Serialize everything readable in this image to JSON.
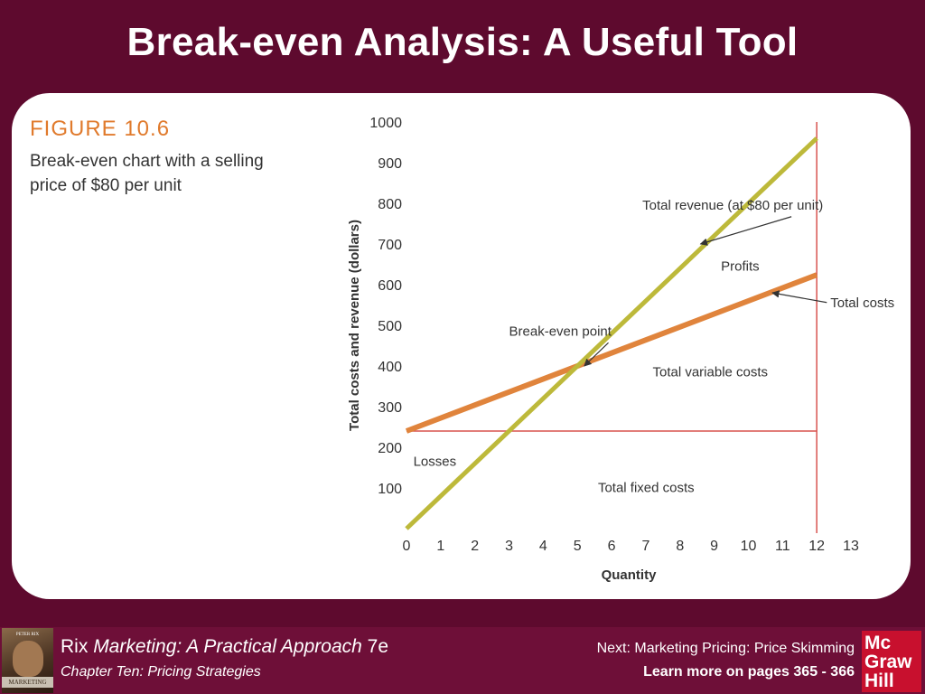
{
  "slide": {
    "title": "Break-even Analysis: A Useful Tool"
  },
  "figure": {
    "label": "FIGURE 10.6",
    "caption": "Break-even chart with a selling price of $80 per unit"
  },
  "chart_data": {
    "type": "line",
    "xlabel": "Quantity",
    "ylabel": "Total costs and revenue (dollars)",
    "xlim": [
      0,
      13
    ],
    "ylim": [
      0,
      1000
    ],
    "x_ticks": [
      0,
      1,
      2,
      3,
      4,
      5,
      6,
      7,
      8,
      9,
      10,
      11,
      12,
      13
    ],
    "y_ticks": [
      100,
      200,
      300,
      400,
      500,
      600,
      700,
      800,
      900,
      1000
    ],
    "grid": false,
    "series": [
      {
        "name": "Total revenue (at $80 per unit)",
        "color": "#bdb93a",
        "x": [
          0,
          12
        ],
        "y": [
          0,
          960
        ]
      },
      {
        "name": "Total costs",
        "color": "#e0843c",
        "x": [
          0,
          12
        ],
        "y": [
          240,
          624
        ]
      },
      {
        "name": "Total fixed costs",
        "color": "#d9534f",
        "x": [
          0,
          12
        ],
        "y": [
          240,
          240
        ]
      }
    ],
    "vertical_marker": {
      "x": 12,
      "color": "#d9534f"
    },
    "annotations": [
      {
        "text": "Total revenue (at $80 per unit)",
        "x": 6.9,
        "y": 785,
        "arrow_to": [
          8.6,
          700
        ]
      },
      {
        "text": "Profits",
        "x": 9.2,
        "y": 635
      },
      {
        "text": "Total costs",
        "x": 12.4,
        "y": 545,
        "arrow_to": [
          10.7,
          580
        ]
      },
      {
        "text": "Break-even point",
        "x": 3.0,
        "y": 475,
        "arrow_to": [
          5.2,
          400
        ]
      },
      {
        "text": "Total variable costs",
        "x": 7.2,
        "y": 375
      },
      {
        "text": "Losses",
        "x": 0.2,
        "y": 155
      },
      {
        "text": "Total fixed costs",
        "x": 5.6,
        "y": 90
      }
    ]
  },
  "footer": {
    "book_author": "Rix",
    "book_title": "Marketing: A Practical Approach",
    "book_edition": "7e",
    "chapter": "Chapter Ten: Pricing Strategies",
    "next": "Next: Marketing Pricing: Price Skimming",
    "learn_more": "Learn more on pages 365 - 366",
    "cover_lines": [
      "PETER RIX",
      "MARKETING"
    ],
    "logo_lines": [
      "Mc",
      "Graw",
      "Hill"
    ]
  }
}
